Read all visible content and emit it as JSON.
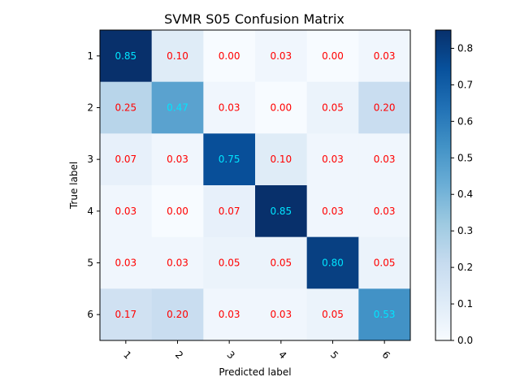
{
  "chart_data": {
    "type": "heatmap",
    "title": "SVMR S05 Confusion Matrix",
    "xlabel": "Predicted label",
    "ylabel": "True label",
    "x_categories": [
      "1",
      "2",
      "3",
      "4",
      "5",
      "6"
    ],
    "y_categories": [
      "1",
      "2",
      "3",
      "4",
      "5",
      "6"
    ],
    "values": [
      [
        0.85,
        0.1,
        0.0,
        0.03,
        0.0,
        0.03
      ],
      [
        0.25,
        0.47,
        0.03,
        0.0,
        0.05,
        0.2
      ],
      [
        0.07,
        0.03,
        0.75,
        0.1,
        0.03,
        0.03
      ],
      [
        0.03,
        0.0,
        0.07,
        0.85,
        0.03,
        0.03
      ],
      [
        0.03,
        0.03,
        0.05,
        0.05,
        0.8,
        0.05
      ],
      [
        0.17,
        0.2,
        0.03,
        0.03,
        0.05,
        0.53
      ]
    ],
    "value_format": "0.00",
    "colormap": "Blues",
    "vmin": 0.0,
    "vmax": 0.85,
    "colorbar_ticks": [
      "0.0",
      "0.1",
      "0.2",
      "0.3",
      "0.4",
      "0.5",
      "0.6",
      "0.7",
      "0.8"
    ],
    "x_tick_rotation_deg": 45,
    "label_color_diagonal": "#00e5ff",
    "label_color_offdiagonal": "#ff0000",
    "grid": false
  }
}
